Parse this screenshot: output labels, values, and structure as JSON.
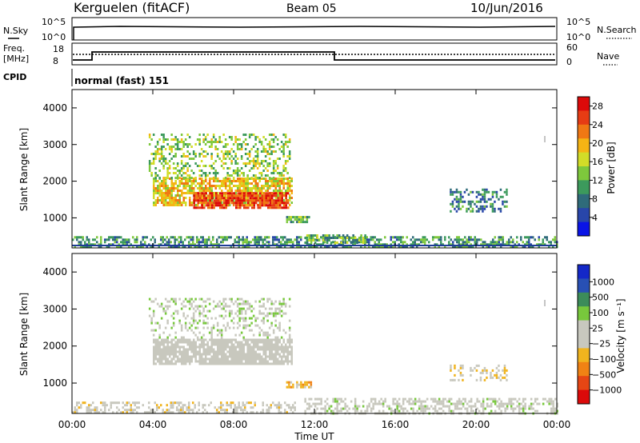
{
  "header": {
    "station": "Kerguelen (fitACF)",
    "beam": "Beam 05",
    "date": "10/Jun/2016"
  },
  "top_panels": {
    "nsky": {
      "label": "N.Sky",
      "ticks": [
        "10^5",
        "10^0"
      ]
    },
    "nsearch": {
      "label": "N.Search",
      "ticks": [
        "10^5",
        "10^0"
      ]
    },
    "freq": {
      "label_line1": "Freq.",
      "label_line2": "[MHz]",
      "ticks": [
        "18",
        "8"
      ]
    },
    "nave": {
      "label": "Nave",
      "ticks": [
        "60",
        "0"
      ]
    },
    "cpid": {
      "label": "CPID",
      "value": "normal (fast) 151"
    }
  },
  "colors": {
    "power_scale": [
      "#0a14e6",
      "#2846aa",
      "#2f6b7a",
      "#3c9a5c",
      "#7ec83c",
      "#d2dc28",
      "#f5b414",
      "#f07814",
      "#e63c14",
      "#dc0a0a"
    ],
    "velocity_scale": [
      "#1428c8",
      "#2850b4",
      "#3c8c5a",
      "#78c83c",
      "#c8c8be",
      "#c8c8be",
      "#f0b41e",
      "#f08214",
      "#e64614",
      "#dc0a0a"
    ]
  },
  "chart_data": [
    {
      "type": "heatmap",
      "title": "",
      "ylabel": "Slant Range [km]",
      "xlabel": "",
      "ylim": [
        180,
        4500
      ],
      "xlim": [
        "00:00",
        "24:00"
      ],
      "yticks": [
        "1000",
        "2000",
        "3000",
        "4000"
      ],
      "colorbar": {
        "label": "Power [dB]",
        "ticks": [
          "4",
          "8",
          "12",
          "16",
          "20",
          "24",
          "28"
        ],
        "range": [
          0,
          30
        ]
      },
      "echo_regions": [
        {
          "t_start": 0.0,
          "t_end": 24.0,
          "range_start": 200,
          "range_end": 500,
          "density": 0.55,
          "level": 10
        },
        {
          "t_start": 4.0,
          "t_end": 10.9,
          "range_start": 1350,
          "range_end": 2100,
          "density": 0.75,
          "level": 18
        },
        {
          "t_start": 6.0,
          "t_end": 10.7,
          "range_start": 1300,
          "range_end": 1700,
          "density": 0.8,
          "level": 26
        },
        {
          "t_start": 3.8,
          "t_end": 10.8,
          "range_start": 2100,
          "range_end": 3300,
          "density": 0.35,
          "level": 14
        },
        {
          "t_start": 10.6,
          "t_end": 11.8,
          "range_start": 900,
          "range_end": 1050,
          "density": 0.8,
          "level": 12
        },
        {
          "t_start": 11.5,
          "t_end": 14.5,
          "range_start": 350,
          "range_end": 550,
          "density": 0.6,
          "level": 12
        },
        {
          "t_start": 18.7,
          "t_end": 21.5,
          "range_start": 1200,
          "range_end": 1800,
          "density": 0.4,
          "level": 8
        }
      ]
    },
    {
      "type": "heatmap",
      "title": "",
      "ylabel": "Slant Range [km]",
      "xlabel": "Time UT",
      "ylim": [
        180,
        4500
      ],
      "xlim": [
        "00:00",
        "24:00"
      ],
      "xticks": [
        "00:00",
        "04:00",
        "08:00",
        "12:00",
        "16:00",
        "20:00",
        "00:00"
      ],
      "yticks": [
        "1000",
        "2000",
        "3000",
        "4000"
      ],
      "colorbar": {
        "label": "Velocity [m s⁻¹]",
        "ticks": [
          "1000",
          "500",
          "100",
          "25",
          "−25",
          "−100",
          "−500",
          "−1000"
        ],
        "range": [
          -1000,
          1000
        ]
      },
      "echo_regions": [
        {
          "t_start": 0.0,
          "t_end": 11.0,
          "range_start": 200,
          "range_end": 500,
          "density": 0.45,
          "level": -60
        },
        {
          "t_start": 11.5,
          "t_end": 24.0,
          "range_start": 200,
          "range_end": 600,
          "density": 0.5,
          "level": 60
        },
        {
          "t_start": 4.0,
          "t_end": 10.9,
          "range_start": 1500,
          "range_end": 2200,
          "density": 0.85,
          "level": 0
        },
        {
          "t_start": 3.8,
          "t_end": 10.8,
          "range_start": 2200,
          "range_end": 3300,
          "density": 0.3,
          "level": 120
        },
        {
          "t_start": 10.6,
          "t_end": 11.8,
          "range_start": 900,
          "range_end": 1050,
          "density": 0.8,
          "level": -300
        },
        {
          "t_start": 18.7,
          "t_end": 21.5,
          "range_start": 1100,
          "range_end": 1500,
          "density": 0.4,
          "level": -150
        }
      ]
    }
  ]
}
